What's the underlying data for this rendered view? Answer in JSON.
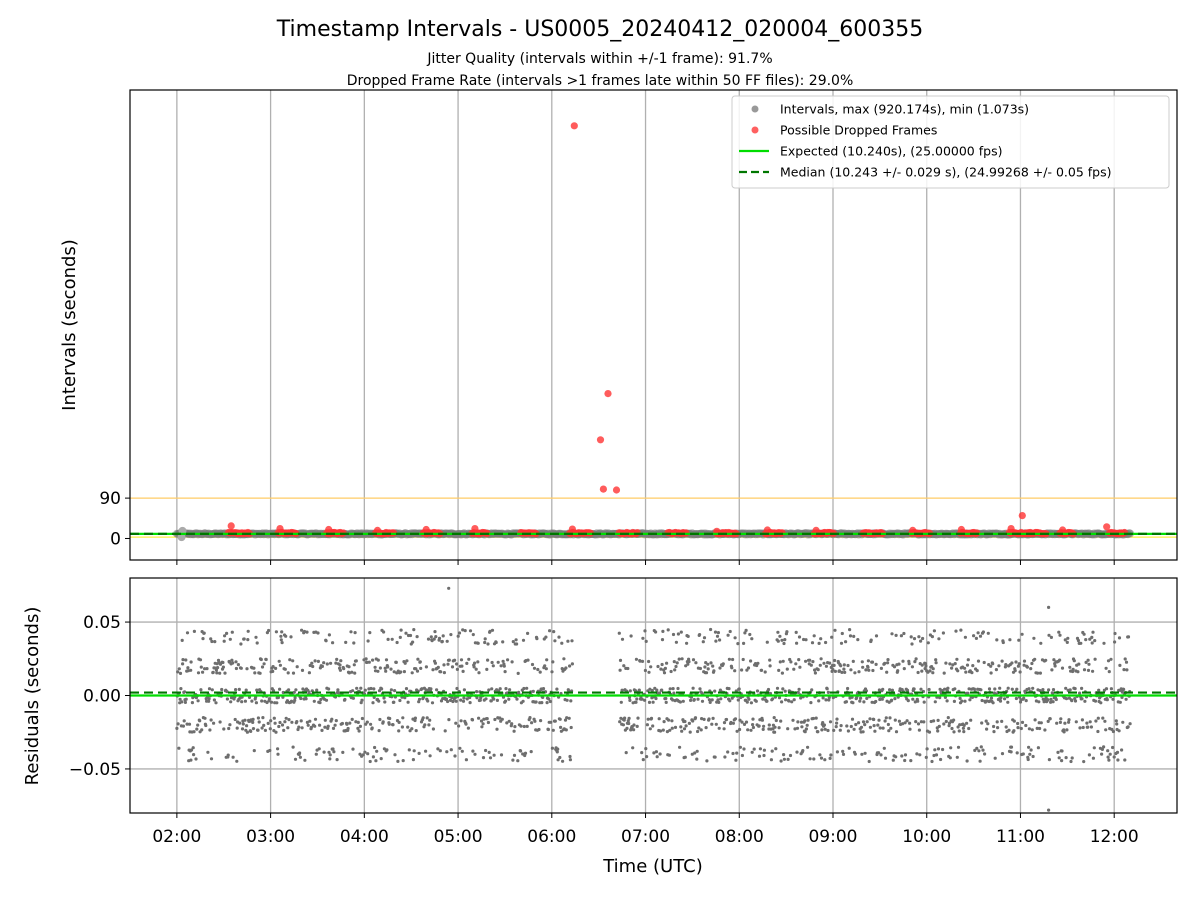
{
  "chart_data": [
    {
      "type": "scatter",
      "panel": "top",
      "title": "Timestamp Intervals - US0005_20240412_020004_600355",
      "subtitle_lines": [
        "Jitter Quality (intervals within +/-1 frame): 91.7%",
        "Dropped Frame Rate (intervals >1 frames late within 50 FF files): 29.0%"
      ],
      "ylabel": "Intervals (seconds)",
      "xlabel": "",
      "ylim": [
        -48,
        1000
      ],
      "yticks": [
        0,
        90
      ],
      "xlim_hours": [
        1.5,
        12.67
      ],
      "xticks_hours": [
        2,
        3,
        4,
        5,
        6,
        7,
        8,
        9,
        10,
        11,
        12
      ],
      "xtick_labels": [
        "02:00",
        "03:00",
        "04:00",
        "05:00",
        "06:00",
        "07:00",
        "08:00",
        "09:00",
        "10:00",
        "11:00",
        "12:00"
      ],
      "grid": "vertical",
      "legend_position": "top-right",
      "legend": [
        "Intervals, max (920.174s), min (1.073s)",
        "Possible Dropped Frames",
        "Expected (10.240s), (25.00000 fps)",
        "Median (10.243 +/- 0.029 s), (24.99268 +/- 0.05 fps)"
      ],
      "reference_lines": [
        {
          "name": "Expected",
          "y": 10.24,
          "color": "#00dd00",
          "style": "solid"
        },
        {
          "name": "Median",
          "y": 10.243,
          "color": "#007700",
          "style": "dashed"
        },
        {
          "name": "threshold",
          "y": 90,
          "color": "#ffcc66",
          "style": "solid"
        },
        {
          "name": "lower",
          "y": 3,
          "color": "#ffee44",
          "style": "solid"
        }
      ],
      "interval_data_hours": [
        2.0,
        12.17
      ],
      "interval_typical_value": 10.24,
      "dropped_frame_clusters_hours": [
        2.55,
        3.08,
        3.6,
        4.12,
        4.63,
        5.15,
        5.67,
        6.19,
        6.72,
        7.24,
        7.76,
        8.28,
        8.8,
        9.32,
        9.84,
        10.36,
        10.88,
        11.08,
        11.42,
        11.95
      ],
      "dropped_outliers": [
        {
          "x": 2.58,
          "y": 28
        },
        {
          "x": 3.1,
          "y": 22
        },
        {
          "x": 3.62,
          "y": 20
        },
        {
          "x": 4.14,
          "y": 18
        },
        {
          "x": 4.66,
          "y": 20
        },
        {
          "x": 5.18,
          "y": 22
        },
        {
          "x": 6.22,
          "y": 21
        },
        {
          "x": 6.24,
          "y": 920.174
        },
        {
          "x": 6.52,
          "y": 220
        },
        {
          "x": 6.55,
          "y": 110
        },
        {
          "x": 6.6,
          "y": 323
        },
        {
          "x": 6.69,
          "y": 108
        },
        {
          "x": 7.76,
          "y": 16
        },
        {
          "x": 8.3,
          "y": 19
        },
        {
          "x": 8.82,
          "y": 18
        },
        {
          "x": 9.85,
          "y": 18
        },
        {
          "x": 10.37,
          "y": 20
        },
        {
          "x": 10.9,
          "y": 22
        },
        {
          "x": 11.02,
          "y": 51
        },
        {
          "x": 11.45,
          "y": 19
        },
        {
          "x": 11.92,
          "y": 26
        }
      ]
    },
    {
      "type": "scatter",
      "panel": "bottom",
      "ylabel": "Residuals (seconds)",
      "xlabel": "Time (UTC)",
      "ylim": [
        -0.08,
        0.08
      ],
      "yticks": [
        -0.05,
        0.0,
        0.05
      ],
      "ytick_labels": [
        "−0.05",
        "0.00",
        "0.05"
      ],
      "xlim_hours": [
        1.5,
        12.67
      ],
      "xticks_hours": [
        2,
        3,
        4,
        5,
        6,
        7,
        8,
        9,
        10,
        11,
        12
      ],
      "xtick_labels": [
        "02:00",
        "03:00",
        "04:00",
        "05:00",
        "06:00",
        "07:00",
        "08:00",
        "09:00",
        "10:00",
        "11:00",
        "12:00"
      ],
      "grid": "both",
      "segments_hours": [
        [
          2.0,
          6.22
        ],
        [
          6.72,
          12.17
        ]
      ],
      "residual_levels": [
        -0.04,
        -0.02,
        0.0,
        0.02,
        0.04
      ],
      "reference_lines": [
        {
          "name": "Expected",
          "y": 0.0,
          "color": "#00dd00",
          "style": "solid"
        },
        {
          "name": "Median",
          "y": 0.002,
          "color": "#007700",
          "style": "dashed"
        }
      ],
      "outliers": [
        {
          "x": 2.15,
          "y": -0.044
        },
        {
          "x": 2.6,
          "y": -0.042
        },
        {
          "x": 4.9,
          "y": 0.073
        },
        {
          "x": 11.3,
          "y": 0.06
        },
        {
          "x": 11.3,
          "y": -0.078
        }
      ]
    }
  ]
}
